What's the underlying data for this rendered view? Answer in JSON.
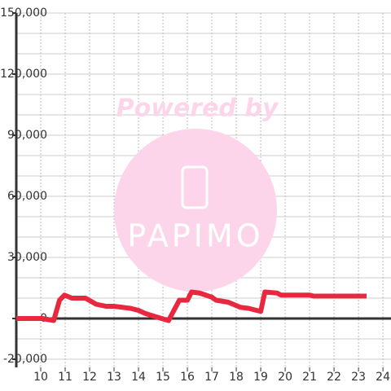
{
  "chart_data": {
    "type": "line",
    "watermark": {
      "line1": "Powered by",
      "line2": "PAPIMO"
    },
    "xlim": [
      9,
      24.33
    ],
    "xticks": [
      10,
      11,
      12,
      13,
      14,
      15,
      16,
      17,
      18,
      19,
      20,
      21,
      22,
      23,
      24
    ],
    "ylim": [
      -24000,
      150000
    ],
    "yticks": [
      {
        "value": -20000,
        "label": "-20,000"
      },
      0,
      {
        "value": 30000,
        "label": "30,000"
      },
      {
        "value": 60000,
        "label": "60,000"
      },
      {
        "value": 90000,
        "label": "90,000"
      },
      {
        "value": 120000,
        "label": "120,000"
      },
      {
        "value": 150000,
        "label": "150,000"
      }
    ],
    "y_minor_ticks": [
      -10000,
      10000,
      20000,
      40000,
      50000,
      70000,
      80000,
      100000,
      110000,
      130000,
      140000
    ],
    "grid": true,
    "series": [
      {
        "color": "#e8283f",
        "x": [
          9,
          10.07,
          10.53,
          10.77,
          10.97,
          11.27,
          11.83,
          12.27,
          12.67,
          13,
          13.67,
          14,
          14.27,
          14.67,
          15,
          15.23,
          15.67,
          16,
          16.17,
          16.5,
          17,
          17.17,
          17.67,
          18.17,
          18.5,
          18.83,
          19,
          19.17,
          19.67,
          19.83,
          20.33,
          21,
          21.17,
          23.33
        ],
        "values": [
          0,
          0,
          -1000,
          9000,
          11500,
          10000,
          10000,
          7000,
          6000,
          6000,
          5000,
          4000,
          2500,
          1000,
          -200,
          -1000,
          9000,
          9000,
          13000,
          12500,
          10500,
          9000,
          8000,
          5500,
          5000,
          4000,
          3500,
          13000,
          12500,
          11500,
          11500,
          11500,
          11000,
          11000
        ]
      }
    ]
  }
}
